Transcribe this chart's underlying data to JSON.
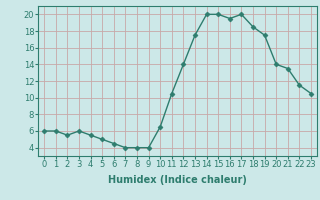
{
  "x": [
    0,
    1,
    2,
    3,
    4,
    5,
    6,
    7,
    8,
    9,
    10,
    11,
    12,
    13,
    14,
    15,
    16,
    17,
    18,
    19,
    20,
    21,
    22,
    23
  ],
  "y": [
    6,
    6,
    5.5,
    6,
    5.5,
    5,
    4.5,
    4,
    4,
    4,
    6.5,
    10.5,
    14,
    17.5,
    20,
    20,
    19.5,
    20,
    18.5,
    17.5,
    14,
    13.5,
    11.5,
    10.5
  ],
  "line_color": "#2e7d6e",
  "marker": "D",
  "marker_size": 2.5,
  "bg_color": "#cce8e8",
  "grid_color": "#c8a8a8",
  "xlabel": "Humidex (Indice chaleur)",
  "ylim": [
    3,
    21
  ],
  "xlim": [
    -0.5,
    23.5
  ],
  "yticks": [
    4,
    6,
    8,
    10,
    12,
    14,
    16,
    18,
    20
  ],
  "xticks": [
    0,
    1,
    2,
    3,
    4,
    5,
    6,
    7,
    8,
    9,
    10,
    11,
    12,
    13,
    14,
    15,
    16,
    17,
    18,
    19,
    20,
    21,
    22,
    23
  ],
  "xtick_labels": [
    "0",
    "1",
    "2",
    "3",
    "4",
    "5",
    "6",
    "7",
    "8",
    "9",
    "10",
    "11",
    "12",
    "13",
    "14",
    "15",
    "16",
    "17",
    "18",
    "19",
    "20",
    "21",
    "22",
    "23"
  ],
  "tick_fontsize": 6,
  "xlabel_fontsize": 7,
  "line_width": 1.0
}
